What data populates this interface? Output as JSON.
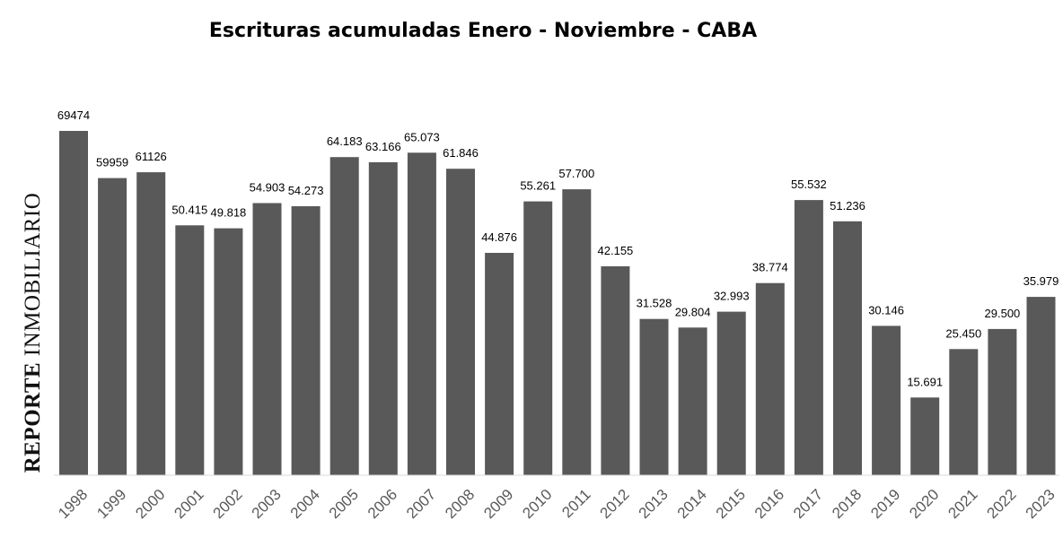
{
  "chart_data": {
    "type": "bar",
    "title": "Escrituras acumuladas Enero - Noviembre - CABA",
    "watermark": {
      "bold_part": "REPORTE",
      "regular_part": "INMOBILIARIO"
    },
    "categories": [
      "1998",
      "1999",
      "2000",
      "2001",
      "2002",
      "2003",
      "2004",
      "2005",
      "2006",
      "2007",
      "2008",
      "2009",
      "2010",
      "2011",
      "2012",
      "2013",
      "2014",
      "2015",
      "2016",
      "2017",
      "2018",
      "2019",
      "2020",
      "2021",
      "2022",
      "2023"
    ],
    "values": [
      69474,
      59959,
      61126,
      50415,
      49818,
      54903,
      54273,
      64183,
      63166,
      65073,
      61846,
      44876,
      55261,
      57700,
      42155,
      31528,
      29804,
      32993,
      38774,
      55532,
      51236,
      30146,
      15691,
      25450,
      29500,
      35979
    ],
    "value_labels": [
      "69474",
      "59959",
      "61126",
      "50.415",
      "49.818",
      "54.903",
      "54.273",
      "64.183",
      "63.166",
      "65.073",
      "61.846",
      "44.876",
      "55.261",
      "57.700",
      "42.155",
      "31.528",
      "29.804",
      "32.993",
      "38.774",
      "55.532",
      "51.236",
      "30.146",
      "15.691",
      "25.450",
      "29.500",
      "35.979"
    ],
    "ylim": [
      0,
      70000
    ],
    "grid": false,
    "legend": "none",
    "bar_color": "#595959",
    "tick_color": "#595959"
  }
}
